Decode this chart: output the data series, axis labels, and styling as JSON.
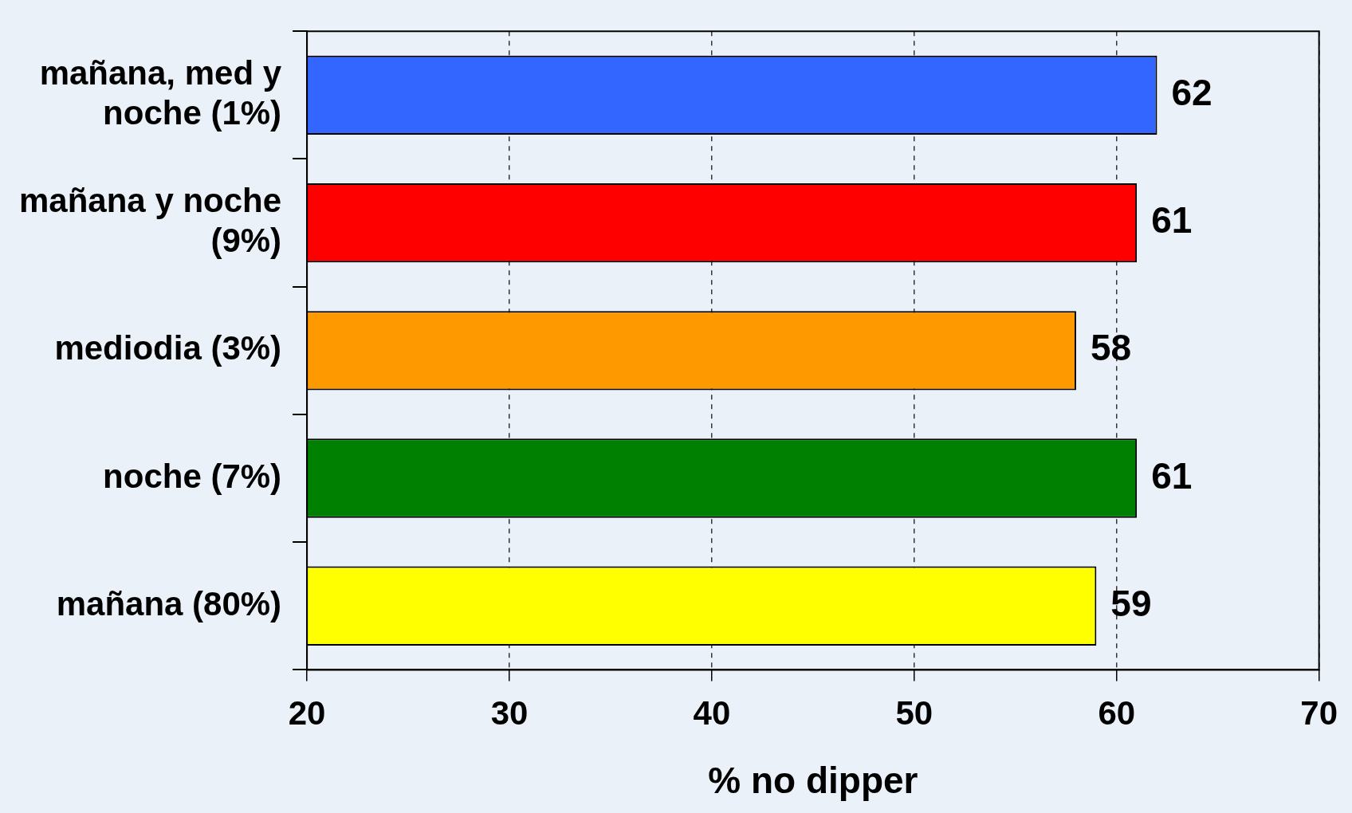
{
  "chart_data": {
    "type": "bar",
    "orientation": "horizontal",
    "xlabel": "% no dipper",
    "categories": [
      "mañana, med y noche (1%)",
      "mañana y noche (9%)",
      "mediodia (3%)",
      "noche (7%)",
      "mañana (80%)"
    ],
    "values": [
      62,
      61,
      58,
      61,
      59
    ],
    "colors": [
      "#3366ff",
      "#ff0000",
      "#ff9900",
      "#008000",
      "#ffff00"
    ],
    "xlim": [
      20,
      70
    ],
    "xticks": [
      20,
      30,
      40,
      50,
      60,
      70
    ],
    "grid": "x",
    "legend": false,
    "data_labels": true
  }
}
